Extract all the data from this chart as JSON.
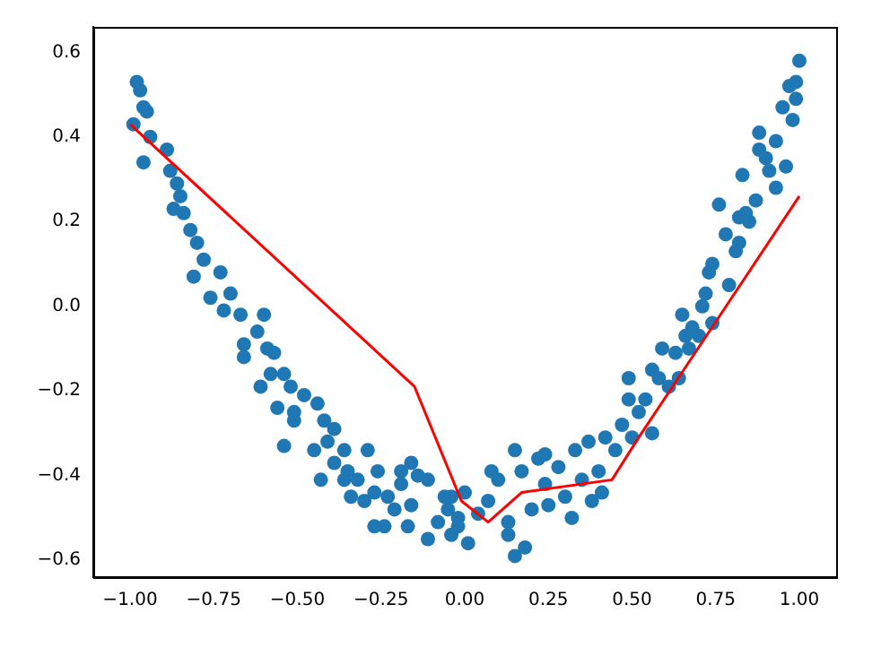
{
  "chart_data": {
    "type": "scatter",
    "xlim": [
      -1.11,
      1.11
    ],
    "ylim": [
      -0.64,
      0.66
    ],
    "xticks": [
      {
        "value": -1,
        "label": "−1.00"
      },
      {
        "value": -0.75,
        "label": "−0.75"
      },
      {
        "value": -0.5,
        "label": "−0.50"
      },
      {
        "value": -0.25,
        "label": "−0.25"
      },
      {
        "value": 0,
        "label": "0.00"
      },
      {
        "value": 0.25,
        "label": "0.25"
      },
      {
        "value": 0.5,
        "label": "0.50"
      },
      {
        "value": 0.75,
        "label": "0.75"
      },
      {
        "value": 1,
        "label": "1.00"
      }
    ],
    "yticks": [
      {
        "value": -0.6,
        "label": "−0.6"
      },
      {
        "value": -0.4,
        "label": "−0.4"
      },
      {
        "value": -0.2,
        "label": "−0.2"
      },
      {
        "value": 0,
        "label": "0.0"
      },
      {
        "value": 0.2,
        "label": "0.2"
      },
      {
        "value": 0.4,
        "label": "0.4"
      },
      {
        "value": 0.6,
        "label": "0.6"
      }
    ],
    "grid": false,
    "legend": false,
    "series": [
      {
        "type": "scatter",
        "color": "#1f77b4",
        "marker": "circle",
        "x": [
          -0.98,
          -0.97,
          -0.96,
          -0.95,
          -0.99,
          -0.94,
          -0.96,
          -0.89,
          -0.88,
          -0.86,
          -0.87,
          -0.85,
          -0.84,
          -0.82,
          -0.8,
          -0.78,
          -0.81,
          -0.73,
          -0.76,
          -0.7,
          -0.72,
          -0.67,
          -0.6,
          -0.62,
          -0.66,
          -0.66,
          -0.57,
          -0.59,
          -0.61,
          -0.58,
          -0.54,
          -0.52,
          -0.56,
          -0.51,
          -0.48,
          -0.44,
          -0.51,
          -0.54,
          -0.45,
          -0.42,
          -0.39,
          -0.41,
          -0.36,
          -0.29,
          -0.39,
          -0.43,
          -0.35,
          -0.36,
          -0.32,
          -0.34,
          -0.26,
          -0.27,
          -0.3,
          -0.23,
          -0.19,
          -0.16,
          -0.14,
          -0.19,
          -0.11,
          -0.27,
          -0.24,
          -0.17,
          -0.21,
          -0.16,
          -0.11,
          -0.08,
          -0.06,
          -0.04,
          -0.02,
          -0.05,
          -0.04,
          -0.02,
          0.01,
          0.0,
          0.04,
          0.07,
          0.08,
          0.1,
          0.13,
          0.13,
          0.15,
          0.18,
          0.15,
          0.17,
          0.2,
          0.22,
          0.24,
          0.24,
          0.25,
          0.28,
          0.3,
          0.32,
          0.33,
          0.35,
          0.37,
          0.38,
          0.4,
          0.41,
          0.42,
          0.45,
          0.47,
          0.49,
          0.49,
          0.5,
          0.52,
          0.54,
          0.56,
          0.56,
          0.58,
          0.59,
          0.61,
          0.63,
          0.64,
          0.65,
          0.66,
          0.67,
          0.68,
          0.7,
          0.71,
          0.72,
          0.74,
          0.73,
          0.74,
          0.78,
          0.79,
          0.81,
          0.82,
          0.76,
          0.82,
          0.85,
          0.84,
          0.83,
          0.87,
          0.88,
          0.9,
          0.91,
          0.93,
          0.93,
          0.96,
          0.88,
          0.95,
          0.98,
          0.99,
          0.97,
          0.99,
          1.0
        ],
        "values": [
          0.53,
          0.51,
          0.47,
          0.46,
          0.43,
          0.4,
          0.34,
          0.37,
          0.32,
          0.29,
          0.23,
          0.26,
          0.22,
          0.18,
          0.15,
          0.11,
          0.07,
          0.08,
          0.02,
          0.03,
          -0.01,
          -0.02,
          -0.02,
          -0.06,
          -0.09,
          -0.12,
          -0.11,
          -0.1,
          -0.19,
          -0.16,
          -0.16,
          -0.19,
          -0.24,
          -0.25,
          -0.21,
          -0.23,
          -0.27,
          -0.33,
          -0.34,
          -0.27,
          -0.29,
          -0.32,
          -0.34,
          -0.34,
          -0.37,
          -0.41,
          -0.39,
          -0.41,
          -0.41,
          -0.45,
          -0.39,
          -0.44,
          -0.46,
          -0.45,
          -0.39,
          -0.37,
          -0.4,
          -0.42,
          -0.41,
          -0.52,
          -0.52,
          -0.52,
          -0.48,
          -0.47,
          -0.55,
          -0.51,
          -0.45,
          -0.54,
          -0.5,
          -0.48,
          -0.45,
          -0.52,
          -0.56,
          -0.44,
          -0.49,
          -0.46,
          -0.39,
          -0.41,
          -0.51,
          -0.54,
          -0.59,
          -0.57,
          -0.34,
          -0.39,
          -0.48,
          -0.36,
          -0.35,
          -0.42,
          -0.47,
          -0.38,
          -0.45,
          -0.5,
          -0.34,
          -0.41,
          -0.32,
          -0.46,
          -0.39,
          -0.44,
          -0.31,
          -0.34,
          -0.28,
          -0.22,
          -0.17,
          -0.31,
          -0.25,
          -0.22,
          -0.3,
          -0.15,
          -0.17,
          -0.1,
          -0.19,
          -0.11,
          -0.17,
          -0.02,
          -0.07,
          -0.1,
          -0.05,
          -0.07,
          0.0,
          0.03,
          -0.04,
          0.08,
          0.1,
          0.17,
          0.05,
          0.13,
          0.15,
          0.24,
          0.21,
          0.2,
          0.22,
          0.31,
          0.25,
          0.37,
          0.35,
          0.32,
          0.28,
          0.39,
          0.33,
          0.41,
          0.47,
          0.44,
          0.49,
          0.52,
          0.53,
          0.58
        ]
      },
      {
        "type": "line",
        "color": "#ff0000",
        "marker": "none",
        "line_style": "solid",
        "x": [
          -1.0,
          -0.15,
          -0.01,
          0.07,
          0.17,
          0.44,
          0.52,
          1.0
        ],
        "values": [
          0.43,
          -0.19,
          -0.46,
          -0.51,
          -0.44,
          -0.41,
          -0.31,
          0.26
        ]
      }
    ]
  }
}
